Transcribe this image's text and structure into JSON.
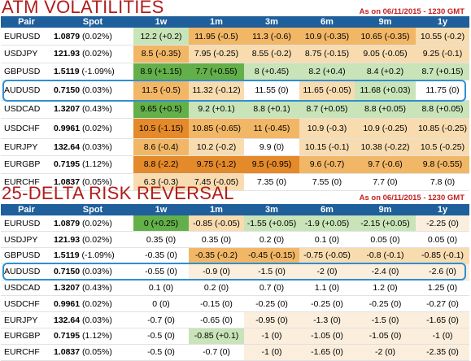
{
  "atm": {
    "title": "ATM VOLATILITIES",
    "as_of": "As on 06/11/2015 - 1230 GMT",
    "columns": [
      "Pair",
      "Spot",
      "1w",
      "1m",
      "3m",
      "6m",
      "9m",
      "1y"
    ],
    "rows": [
      {
        "pair": "EURUSD",
        "spot": "1.0879",
        "chg": "(0.02%)",
        "cells": [
          "12.2 (+0.2)",
          "11.95 (-0.5)",
          "11.3 (-0.6)",
          "10.9 (-0.35)",
          "10.65 (-0.35)",
          "10.55 (-0.2)"
        ]
      },
      {
        "pair": "USDJPY",
        "spot": "121.93",
        "chg": "(0.02%)",
        "cells": [
          "8.5 (-0.35)",
          "7.95 (-0.25)",
          "8.55 (-0.2)",
          "8.75 (-0.15)",
          "9.05 (-0.05)",
          "9.25 (-0.1)"
        ]
      },
      {
        "pair": "GBPUSD",
        "spot": "1.5119",
        "chg": "(-1.09%)",
        "cells": [
          "8.9 (+1.15)",
          "7.7 (+0.55)",
          "8 (+0.45)",
          "8.2 (+0.4)",
          "8.4 (+0.2)",
          "8.7 (+0.15)"
        ]
      },
      {
        "pair": "AUDUSD",
        "spot": "0.7150",
        "chg": "(0.03%)",
        "cells": [
          "11.5 (-0.5)",
          "11.32 (-0.12)",
          "11.55 (0)",
          "11.65 (-0.05)",
          "11.68 (+0.03)",
          "11.75 (0)"
        ]
      },
      {
        "pair": "USDCAD",
        "spot": "1.3207",
        "chg": "(0.43%)",
        "cells": [
          "9.65 (+0.5)",
          "9.2 (+0.1)",
          "8.8 (+0.1)",
          "8.7 (+0.05)",
          "8.8 (+0.05)",
          "8.8 (+0.05)"
        ]
      },
      {
        "pair": "USDCHF",
        "spot": "0.9961",
        "chg": "(0.02%)",
        "cells": [
          "10.5 (-1.15)",
          "10.85 (-0.65)",
          "11 (-0.45)",
          "10.9 (-0.3)",
          "10.9 (-0.25)",
          "10.85 (-0.25)"
        ]
      },
      {
        "pair": "EURJPY",
        "spot": "132.64",
        "chg": "(0.03%)",
        "cells": [
          "8.6 (-0.4)",
          "10.2 (-0.2)",
          "9.9 (0)",
          "10.15 (-0.1)",
          "10.38 (-0.22)",
          "10.5 (-0.25)"
        ]
      },
      {
        "pair": "EURGBP",
        "spot": "0.7195",
        "chg": "(1.12%)",
        "cells": [
          "8.8 (-2.2)",
          "9.75 (-1.2)",
          "9.5 (-0.95)",
          "9.6 (-0.7)",
          "9.7 (-0.6)",
          "9.8 (-0.55)"
        ]
      },
      {
        "pair": "EURCHF",
        "spot": "1.0837",
        "chg": "(0.05%)",
        "cells": [
          "6.3 (-0.3)",
          "7.45 (-0.05)",
          "7.35 (0)",
          "7.55 (0)",
          "7.7 (0)",
          "7.8 (0)"
        ]
      }
    ]
  },
  "rr": {
    "title": "25-DELTA RISK REVERSAL",
    "as_of": "As on 06/11/2015 - 1230 GMT",
    "columns": [
      "Pair",
      "Spot",
      "1w",
      "1m",
      "3m",
      "6m",
      "9m",
      "1y"
    ],
    "rows": [
      {
        "pair": "EURUSD",
        "spot": "1.0879",
        "chg": "(0.02%)",
        "cells": [
          "0 (+0.25)",
          "-0.85 (-0.05)",
          "-1.55 (+0.05)",
          "-1.9 (+0.05)",
          "-2.15 (+0.05)",
          "-2.25 (0)"
        ]
      },
      {
        "pair": "USDJPY",
        "spot": "121.93",
        "chg": "(0.02%)",
        "cells": [
          "0.35 (0)",
          "0.35 (0)",
          "0.2 (0)",
          "0.1 (0)",
          "0.05 (0)",
          "0.05 (0)"
        ]
      },
      {
        "pair": "GBPUSD",
        "spot": "1.5119",
        "chg": "(-1.09%)",
        "cells": [
          "-0.35 (0)",
          "-0.35 (-0.2)",
          "-0.45 (-0.15)",
          "-0.75 (-0.05)",
          "-0.8 (-0.1)",
          "-0.85 (-0.1)"
        ]
      },
      {
        "pair": "AUDUSD",
        "spot": "0.7150",
        "chg": "(0.03%)",
        "cells": [
          "-0.55 (0)",
          "-0.9 (0)",
          "-1.5 (0)",
          "-2 (0)",
          "-2.4 (0)",
          "-2.6 (0)"
        ]
      },
      {
        "pair": "USDCAD",
        "spot": "1.3207",
        "chg": "(0.43%)",
        "cells": [
          "0.1 (0)",
          "0.2 (0)",
          "0.7 (0)",
          "1.1 (0)",
          "1.2 (0)",
          "1.25 (0)"
        ]
      },
      {
        "pair": "USDCHF",
        "spot": "0.9961",
        "chg": "(0.02%)",
        "cells": [
          "0 (0)",
          "-0.15 (0)",
          "-0.25 (0)",
          "-0.25 (0)",
          "-0.25 (0)",
          "-0.27 (0)"
        ]
      },
      {
        "pair": "EURJPY",
        "spot": "132.64",
        "chg": "(0.03%)",
        "cells": [
          "-0.7 (0)",
          "-0.65 (0)",
          "-0.95 (0)",
          "-1.3 (0)",
          "-1.5 (0)",
          "-1.65 (0)"
        ]
      },
      {
        "pair": "EURGBP",
        "spot": "0.7195",
        "chg": "(1.12%)",
        "cells": [
          "-0.5 (0)",
          "-0.85 (+0.1)",
          "-1 (0)",
          "-1.05 (0)",
          "-1.05 (0)",
          "-1 (0)"
        ]
      },
      {
        "pair": "EURCHF",
        "spot": "1.0837",
        "chg": "(0.05%)",
        "cells": [
          "-0.5 (0)",
          "-0.7 (0)",
          "-1 (0)",
          "-1.65 (0)",
          "-2 (0)",
          "-2.35 (0)"
        ]
      }
    ]
  },
  "colors": {
    "header_bg": "#1f5f9b",
    "title": "#b01c1c",
    "highlight_border": "#2e8fd1",
    "green_strong": "#63b04a",
    "green_light": "#c8e4b8",
    "orange_strong": "#e48a2a",
    "orange_mid": "#f2b766",
    "orange_light": "#f8dcb0",
    "pale": "#fbeedd"
  },
  "chart_data": [
    {
      "type": "table",
      "title": "ATM VOLATILITIES",
      "columns": [
        "Pair",
        "Spot",
        "1w",
        "1m",
        "3m",
        "6m",
        "9m",
        "1y"
      ],
      "highlighted_row": "AUDUSD",
      "rows": [
        [
          "EURUSD",
          "1.0879 (0.02%)",
          "12.2 (+0.2)",
          "11.95 (-0.5)",
          "11.3 (-0.6)",
          "10.9 (-0.35)",
          "10.65 (-0.35)",
          "10.55 (-0.2)"
        ],
        [
          "USDJPY",
          "121.93 (0.02%)",
          "8.5 (-0.35)",
          "7.95 (-0.25)",
          "8.55 (-0.2)",
          "8.75 (-0.15)",
          "9.05 (-0.05)",
          "9.25 (-0.1)"
        ],
        [
          "GBPUSD",
          "1.5119 (-1.09%)",
          "8.9 (+1.15)",
          "7.7 (+0.55)",
          "8 (+0.45)",
          "8.2 (+0.4)",
          "8.4 (+0.2)",
          "8.7 (+0.15)"
        ],
        [
          "AUDUSD",
          "0.7150 (0.03%)",
          "11.5 (-0.5)",
          "11.32 (-0.12)",
          "11.55 (0)",
          "11.65 (-0.05)",
          "11.68 (+0.03)",
          "11.75 (0)"
        ],
        [
          "USDCAD",
          "1.3207 (0.43%)",
          "9.65 (+0.5)",
          "9.2 (+0.1)",
          "8.8 (+0.1)",
          "8.7 (+0.05)",
          "8.8 (+0.05)",
          "8.8 (+0.05)"
        ],
        [
          "USDCHF",
          "0.9961 (0.02%)",
          "10.5 (-1.15)",
          "10.85 (-0.65)",
          "11 (-0.45)",
          "10.9 (-0.3)",
          "10.9 (-0.25)",
          "10.85 (-0.25)"
        ],
        [
          "EURJPY",
          "132.64 (0.03%)",
          "8.6 (-0.4)",
          "10.2 (-0.2)",
          "9.9 (0)",
          "10.15 (-0.1)",
          "10.38 (-0.22)",
          "10.5 (-0.25)"
        ],
        [
          "EURGBP",
          "0.7195 (1.12%)",
          "8.8 (-2.2)",
          "9.75 (-1.2)",
          "9.5 (-0.95)",
          "9.6 (-0.7)",
          "9.7 (-0.6)",
          "9.8 (-0.55)"
        ],
        [
          "EURCHF",
          "1.0837 (0.05%)",
          "6.3 (-0.3)",
          "7.45 (-0.05)",
          "7.35 (0)",
          "7.55 (0)",
          "7.7 (0)",
          "7.8 (0)"
        ]
      ]
    },
    {
      "type": "table",
      "title": "25-DELTA RISK REVERSAL",
      "columns": [
        "Pair",
        "Spot",
        "1w",
        "1m",
        "3m",
        "6m",
        "9m",
        "1y"
      ],
      "highlighted_row": "AUDUSD",
      "rows": [
        [
          "EURUSD",
          "1.0879 (0.02%)",
          "0 (+0.25)",
          "-0.85 (-0.05)",
          "-1.55 (+0.05)",
          "-1.9 (+0.05)",
          "-2.15 (+0.05)",
          "-2.25 (0)"
        ],
        [
          "USDJPY",
          "121.93 (0.02%)",
          "0.35 (0)",
          "0.35 (0)",
          "0.2 (0)",
          "0.1 (0)",
          "0.05 (0)",
          "0.05 (0)"
        ],
        [
          "GBPUSD",
          "1.5119 (-1.09%)",
          "-0.35 (0)",
          "-0.35 (-0.2)",
          "-0.45 (-0.15)",
          "-0.75 (-0.05)",
          "-0.8 (-0.1)",
          "-0.85 (-0.1)"
        ],
        [
          "AUDUSD",
          "0.7150 (0.03%)",
          "-0.55 (0)",
          "-0.9 (0)",
          "-1.5 (0)",
          "-2 (0)",
          "-2.4 (0)",
          "-2.6 (0)"
        ],
        [
          "USDCAD",
          "1.3207 (0.43%)",
          "0.1 (0)",
          "0.2 (0)",
          "0.7 (0)",
          "1.1 (0)",
          "1.2 (0)",
          "1.25 (0)"
        ],
        [
          "USDCHF",
          "0.9961 (0.02%)",
          "0 (0)",
          "-0.15 (0)",
          "-0.25 (0)",
          "-0.25 (0)",
          "-0.25 (0)",
          "-0.27 (0)"
        ],
        [
          "EURJPY",
          "132.64 (0.03%)",
          "-0.7 (0)",
          "-0.65 (0)",
          "-0.95 (0)",
          "-1.3 (0)",
          "-1.5 (0)",
          "-1.65 (0)"
        ],
        [
          "EURGBP",
          "0.7195 (1.12%)",
          "-0.5 (0)",
          "-0.85 (+0.1)",
          "-1 (0)",
          "-1.05 (0)",
          "-1.05 (0)",
          "-1 (0)"
        ],
        [
          "EURCHF",
          "1.0837 (0.05%)",
          "-0.5 (0)",
          "-0.7 (0)",
          "-1 (0)",
          "-1.65 (0)",
          "-2 (0)",
          "-2.35 (0)"
        ]
      ]
    }
  ]
}
